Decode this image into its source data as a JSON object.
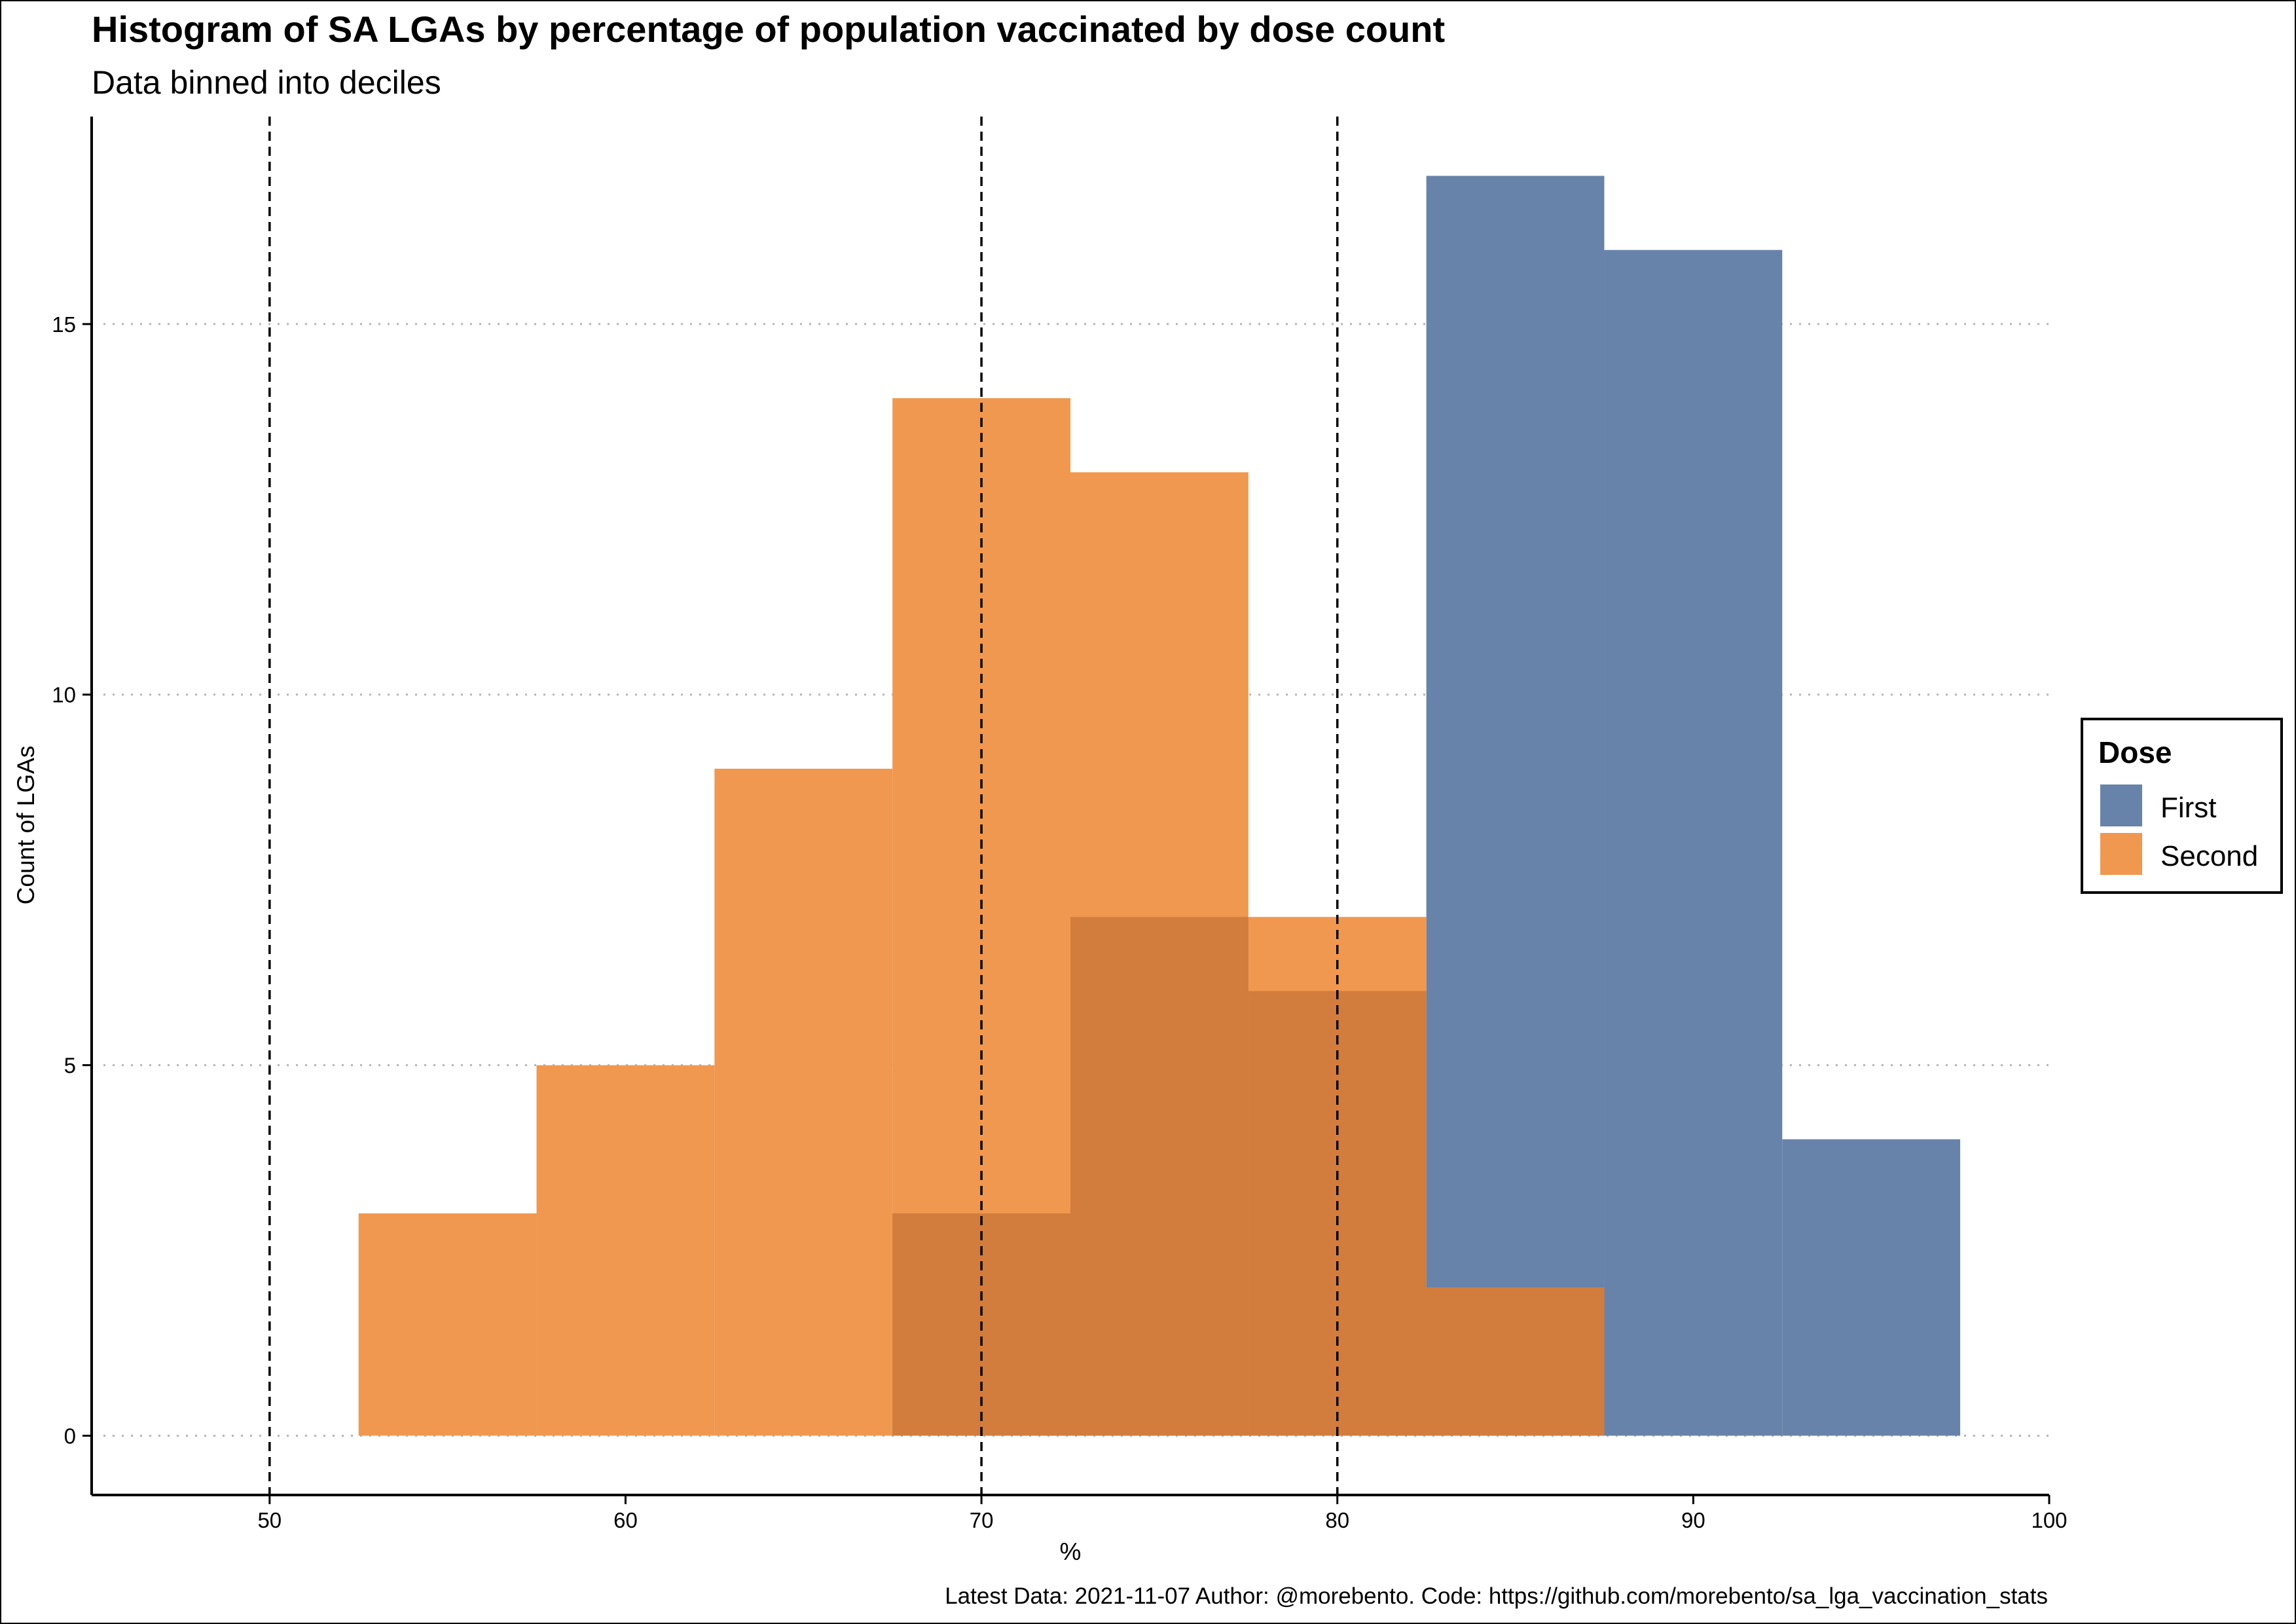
{
  "chart_data": {
    "type": "bar",
    "title": "Histogram of SA LGAs by percentage of population vaccinated by dose count",
    "subtitle": "Data binned into deciles",
    "xlabel": "%",
    "ylabel": "Count of LGAs",
    "xlim": [
      45,
      100
    ],
    "ylim": [
      -0.8,
      17.8
    ],
    "x_ticks": [
      50,
      60,
      70,
      80,
      90,
      100
    ],
    "y_ticks": [
      0,
      5,
      10,
      15
    ],
    "bin_width": 5,
    "grid": "horizontal dotted",
    "reference_lines": [
      50,
      70,
      80
    ],
    "legend_title": "Dose",
    "legend_position": "right",
    "series": [
      {
        "name": "First",
        "color": "#6783aa",
        "bins": [
          {
            "x_start": 67.5,
            "x_end": 72.5,
            "count": 3
          },
          {
            "x_start": 72.5,
            "x_end": 77.5,
            "count": 7
          },
          {
            "x_start": 77.5,
            "x_end": 82.5,
            "count": 6
          },
          {
            "x_start": 82.5,
            "x_end": 87.5,
            "count": 17
          },
          {
            "x_start": 87.5,
            "x_end": 92.5,
            "count": 16
          },
          {
            "x_start": 92.5,
            "x_end": 97.5,
            "count": 4
          }
        ]
      },
      {
        "name": "Second",
        "color": "#f0984f",
        "bins": [
          {
            "x_start": 52.5,
            "x_end": 57.5,
            "count": 3
          },
          {
            "x_start": 57.5,
            "x_end": 62.5,
            "count": 5
          },
          {
            "x_start": 62.5,
            "x_end": 67.5,
            "count": 9
          },
          {
            "x_start": 67.5,
            "x_end": 72.5,
            "count": 14
          },
          {
            "x_start": 72.5,
            "x_end": 77.5,
            "count": 13
          },
          {
            "x_start": 77.5,
            "x_end": 82.5,
            "count": 7
          },
          {
            "x_start": 82.5,
            "x_end": 87.5,
            "count": 2
          }
        ]
      }
    ],
    "overlap_color": "#d27c3d",
    "caption": "Latest Data: 2021-11-07 Author: @morebento. Code: https://github.com/morebento/sa_lga_vaccination_stats"
  }
}
